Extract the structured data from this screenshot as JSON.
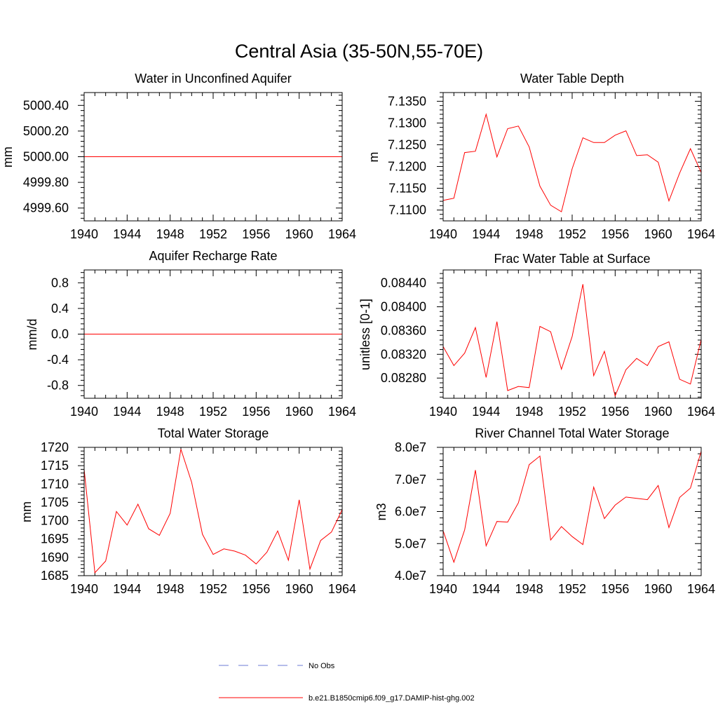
{
  "figure": {
    "title": "Central Asia (35-50N,55-70E)"
  },
  "legend": {
    "items": [
      {
        "label": "No Obs",
        "color": "#6b7bd6",
        "style": "dashed"
      },
      {
        "label": "b.e21.B1850cmip6.f09_g17.DAMIP-hist-ghg.002",
        "color": "#ff0000",
        "style": "solid"
      }
    ]
  },
  "chart_data": [
    {
      "type": "line",
      "title": "Water in Unconfined Aquifer",
      "ylabel": "mm",
      "xlim": [
        1940,
        1964
      ],
      "ylim": [
        4999.5,
        5000.5
      ],
      "xticks": [
        "1940",
        "1944",
        "1948",
        "1952",
        "1956",
        "1960",
        "1964"
      ],
      "yticks": [
        {
          "v": 4999.6,
          "label": "4999.60"
        },
        {
          "v": 4999.8,
          "label": "4999.80"
        },
        {
          "v": 5000.0,
          "label": "5000.00"
        },
        {
          "v": 5000.2,
          "label": "5000.20"
        },
        {
          "v": 5000.4,
          "label": "5000.40"
        }
      ],
      "series": [
        {
          "color": "#ff0000",
          "x": [
            1940,
            1964
          ],
          "y": [
            5000.0,
            5000.0
          ]
        }
      ]
    },
    {
      "type": "line",
      "title": "Water Table Depth",
      "ylabel": "m",
      "xlim": [
        1940,
        1964
      ],
      "ylim": [
        7.1075,
        7.137
      ],
      "xticks": [
        "1940",
        "1944",
        "1948",
        "1952",
        "1956",
        "1960",
        "1964"
      ],
      "yticks": [
        {
          "v": 7.11,
          "label": "7.1100"
        },
        {
          "v": 7.115,
          "label": "7.1150"
        },
        {
          "v": 7.12,
          "label": "7.1200"
        },
        {
          "v": 7.125,
          "label": "7.1250"
        },
        {
          "v": 7.13,
          "label": "7.1300"
        },
        {
          "v": 7.135,
          "label": "7.1350"
        }
      ],
      "series": [
        {
          "color": "#ff0000",
          "x": [
            1940,
            1941,
            1942,
            1943,
            1944,
            1945,
            1946,
            1947,
            1948,
            1949,
            1950,
            1951,
            1952,
            1953,
            1954,
            1955,
            1956,
            1957,
            1958,
            1959,
            1960,
            1961,
            1962,
            1963,
            1964
          ],
          "y": [
            7.1122,
            7.1127,
            7.1232,
            7.1235,
            7.132,
            7.1222,
            7.1287,
            7.1293,
            7.1245,
            7.1155,
            7.1111,
            7.1096,
            7.1195,
            7.1266,
            7.1255,
            7.1255,
            7.1272,
            7.1282,
            7.1225,
            7.1227,
            7.121,
            7.1121,
            7.1185,
            7.1241,
            7.1186
          ]
        }
      ]
    },
    {
      "type": "line",
      "title": "Aquifer Recharge Rate",
      "ylabel": "mm/d",
      "xlim": [
        1940,
        1964
      ],
      "ylim": [
        -1.0,
        1.0
      ],
      "xticks": [
        "1940",
        "1944",
        "1948",
        "1952",
        "1956",
        "1960",
        "1964"
      ],
      "yticks": [
        {
          "v": -0.8,
          "label": "-0.8"
        },
        {
          "v": -0.4,
          "label": "-0.4"
        },
        {
          "v": 0.0,
          "label": "0.0"
        },
        {
          "v": 0.4,
          "label": "0.4"
        },
        {
          "v": 0.8,
          "label": "0.8"
        }
      ],
      "series": [
        {
          "color": "#ff0000",
          "x": [
            1940,
            1964
          ],
          "y": [
            0.0,
            0.0
          ]
        }
      ]
    },
    {
      "type": "line",
      "title": "Frac Water Table at Surface",
      "ylabel": "unitless [0-1]",
      "xlim": [
        1940,
        1964
      ],
      "ylim": [
        0.08246,
        0.08462
      ],
      "xticks": [
        "1940",
        "1944",
        "1948",
        "1952",
        "1956",
        "1960",
        "1964"
      ],
      "yticks": [
        {
          "v": 0.0828,
          "label": "0.08280"
        },
        {
          "v": 0.0832,
          "label": "0.08320"
        },
        {
          "v": 0.0836,
          "label": "0.08360"
        },
        {
          "v": 0.084,
          "label": "0.08400"
        },
        {
          "v": 0.0844,
          "label": "0.08440"
        }
      ],
      "series": [
        {
          "color": "#ff0000",
          "x": [
            1940,
            1941,
            1942,
            1943,
            1944,
            1945,
            1946,
            1947,
            1948,
            1949,
            1950,
            1951,
            1952,
            1953,
            1954,
            1955,
            1956,
            1957,
            1958,
            1959,
            1960,
            1961,
            1962,
            1963,
            1964
          ],
          "y": [
            0.08333,
            0.08301,
            0.08322,
            0.08365,
            0.08281,
            0.08375,
            0.08259,
            0.08266,
            0.08264,
            0.08367,
            0.08358,
            0.08295,
            0.0835,
            0.08438,
            0.08284,
            0.08325,
            0.0825,
            0.08294,
            0.08313,
            0.08301,
            0.08333,
            0.08341,
            0.08278,
            0.0827,
            0.08345
          ]
        }
      ]
    },
    {
      "type": "line",
      "title": "Total Water Storage",
      "ylabel": "mm",
      "xlim": [
        1940,
        1964
      ],
      "ylim": [
        1685,
        1720
      ],
      "xticks": [
        "1940",
        "1944",
        "1948",
        "1952",
        "1956",
        "1960",
        "1964"
      ],
      "yticks": [
        {
          "v": 1685,
          "label": "1685"
        },
        {
          "v": 1690,
          "label": "1690"
        },
        {
          "v": 1695,
          "label": "1695"
        },
        {
          "v": 1700,
          "label": "1700"
        },
        {
          "v": 1705,
          "label": "1705"
        },
        {
          "v": 1710,
          "label": "1710"
        },
        {
          "v": 1715,
          "label": "1715"
        },
        {
          "v": 1720,
          "label": "1720"
        }
      ],
      "series": [
        {
          "color": "#ff0000",
          "x": [
            1940,
            1941,
            1942,
            1943,
            1944,
            1945,
            1946,
            1947,
            1948,
            1949,
            1950,
            1951,
            1952,
            1953,
            1954,
            1955,
            1956,
            1957,
            1958,
            1959,
            1960,
            1961,
            1962,
            1963,
            1964
          ],
          "y": [
            1714.0,
            1685.8,
            1689.0,
            1702.5,
            1698.8,
            1704.5,
            1697.8,
            1696.0,
            1702.0,
            1719.5,
            1710.5,
            1696.3,
            1690.8,
            1692.3,
            1691.7,
            1690.6,
            1688.2,
            1691.4,
            1697.2,
            1689.2,
            1705.7,
            1686.8,
            1694.6,
            1696.9,
            1703.0
          ]
        }
      ]
    },
    {
      "type": "line",
      "title": "River Channel Total Water Storage",
      "ylabel": "m3",
      "xlim": [
        1940,
        1964
      ],
      "ylim": [
        40000000,
        80000000
      ],
      "xticks": [
        "1940",
        "1944",
        "1948",
        "1952",
        "1956",
        "1960",
        "1964"
      ],
      "yticks": [
        {
          "v": 40000000,
          "label": "4.0e7"
        },
        {
          "v": 50000000,
          "label": "5.0e7"
        },
        {
          "v": 60000000,
          "label": "6.0e7"
        },
        {
          "v": 70000000,
          "label": "7.0e7"
        },
        {
          "v": 80000000,
          "label": "8.0e7"
        }
      ],
      "series": [
        {
          "color": "#ff0000",
          "x": [
            1940,
            1941,
            1942,
            1943,
            1944,
            1945,
            1946,
            1947,
            1948,
            1949,
            1950,
            1951,
            1952,
            1953,
            1954,
            1955,
            1956,
            1957,
            1958,
            1959,
            1960,
            1961,
            1962,
            1963,
            1964
          ],
          "y": [
            54000000,
            44200000,
            54300000,
            72900000,
            49300000,
            56900000,
            56700000,
            62700000,
            74600000,
            77300000,
            51100000,
            55300000,
            52200000,
            49700000,
            67600000,
            57800000,
            62000000,
            64500000,
            64100000,
            63700000,
            68100000,
            55000000,
            64400000,
            67300000,
            78800000
          ]
        }
      ]
    }
  ]
}
